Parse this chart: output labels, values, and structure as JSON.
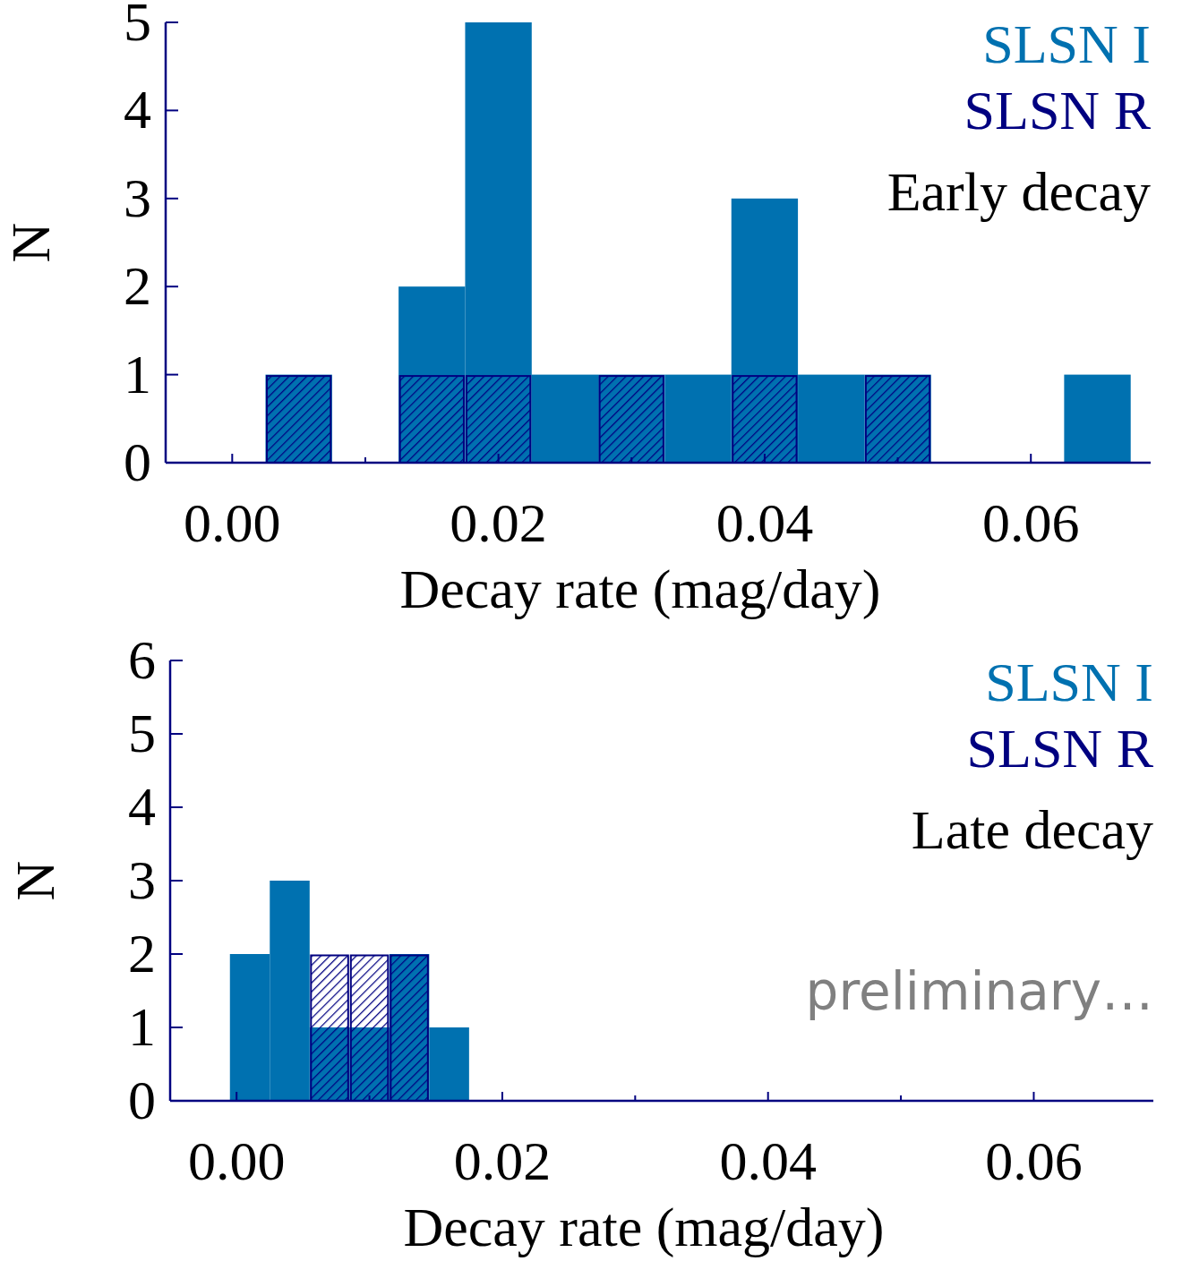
{
  "chart_data": [
    {
      "type": "histogram",
      "title": "Early decay",
      "xlabel": "Decay rate (mag/day)",
      "ylabel": "N",
      "bins": [
        0.0025,
        0.0075,
        0.0125,
        0.0175,
        0.0225,
        0.0275,
        0.0325,
        0.0375,
        0.0425,
        0.0475,
        0.0525,
        0.0575,
        0.0625,
        0.0675
      ],
      "series": [
        {
          "name": "SLSN I",
          "color": "#0071b0",
          "values": [
            1,
            0,
            2,
            5,
            1,
            1,
            1,
            3,
            1,
            1,
            0,
            0,
            1
          ]
        },
        {
          "name": "SLSN R",
          "color": "#000080",
          "values": [
            1,
            0,
            1,
            1,
            0,
            1,
            0,
            1,
            0,
            1,
            0,
            0,
            0
          ]
        }
      ],
      "xlim": [
        -0.005,
        0.069
      ],
      "ylim": [
        0,
        5
      ],
      "xticks": [
        {
          "value": 0,
          "label": "0.00"
        },
        {
          "value": 0.01,
          "label": null
        },
        {
          "value": 0.02,
          "label": "0.02"
        },
        {
          "value": 0.03,
          "label": null
        },
        {
          "value": 0.04,
          "label": "0.04"
        },
        {
          "value": 0.05,
          "label": null
        },
        {
          "value": 0.06,
          "label": "0.06"
        }
      ],
      "yticks": [
        0,
        1,
        2,
        3,
        4,
        5
      ],
      "legend": "top right",
      "grid": false
    },
    {
      "type": "histogram",
      "title": "Late decay",
      "xlabel": "Decay rate (mag/day)",
      "ylabel": "N",
      "annotations": [
        "preliminary…"
      ],
      "bins": [
        -0.0005,
        0.0025,
        0.0055,
        0.0085,
        0.0115,
        0.0145,
        0.0175
      ],
      "series": [
        {
          "name": "SLSN I",
          "color": "#0071b0",
          "values": [
            2,
            3,
            1,
            1,
            2,
            1
          ]
        },
        {
          "name": "SLSN R",
          "color": "#000080",
          "values": [
            0,
            0,
            2,
            2,
            2,
            0
          ]
        }
      ],
      "xlim": [
        -0.005,
        0.069
      ],
      "ylim": [
        0,
        6
      ],
      "xticks": [
        {
          "value": 0,
          "label": "0.00"
        },
        {
          "value": 0.01,
          "label": null
        },
        {
          "value": 0.02,
          "label": "0.02"
        },
        {
          "value": 0.03,
          "label": null
        },
        {
          "value": 0.04,
          "label": "0.04"
        },
        {
          "value": 0.05,
          "label": null
        },
        {
          "value": 0.06,
          "label": "0.06"
        }
      ],
      "yticks": [
        0,
        1,
        2,
        3,
        4,
        5,
        6
      ],
      "legend": "top right",
      "grid": false
    }
  ]
}
